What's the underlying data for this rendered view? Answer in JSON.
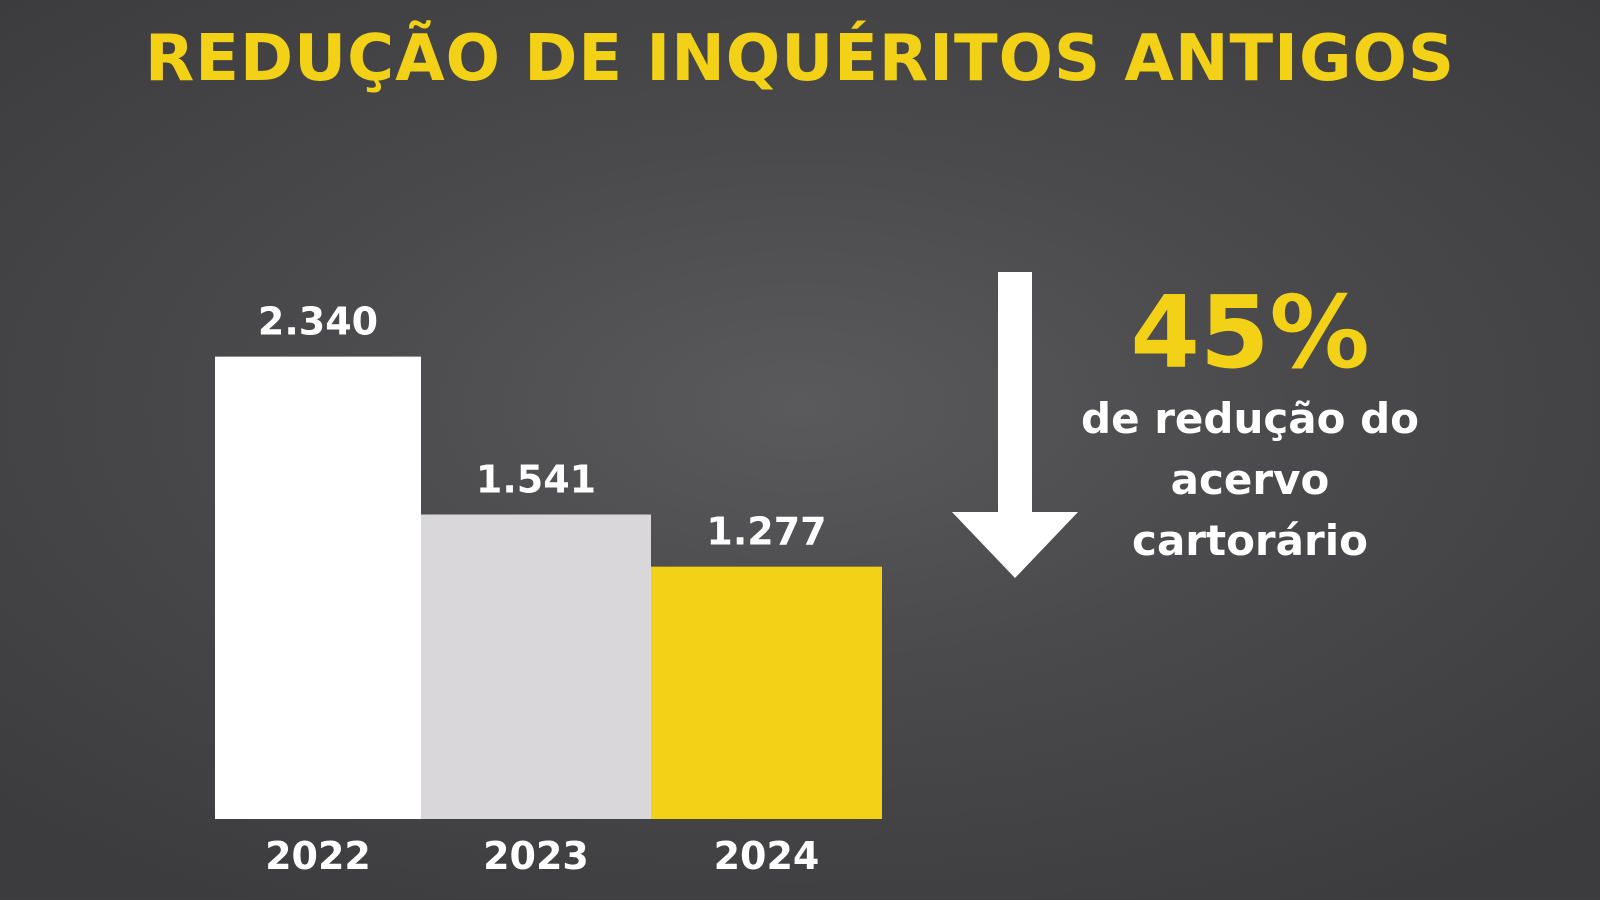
{
  "title": "REDUÇÃO DE INQUÉRITOS ANTIGOS",
  "chart_data": {
    "type": "bar",
    "categories": [
      "2022",
      "2023",
      "2024"
    ],
    "values": [
      2340,
      1541,
      1277
    ],
    "value_labels": [
      "2.340",
      "1.541",
      "1.277"
    ],
    "ylim": [
      0,
      2500
    ],
    "grid": false,
    "colors": [
      "#ffffff",
      "#d9d7da",
      "#f2d116"
    ]
  },
  "callout": {
    "percent": "45%",
    "line1": "de redução do",
    "line2": "acervo",
    "line3": "cartorário",
    "arrow_icon": "down-arrow-icon"
  },
  "colors": {
    "accent": "#f2d116",
    "text": "#ffffff"
  }
}
